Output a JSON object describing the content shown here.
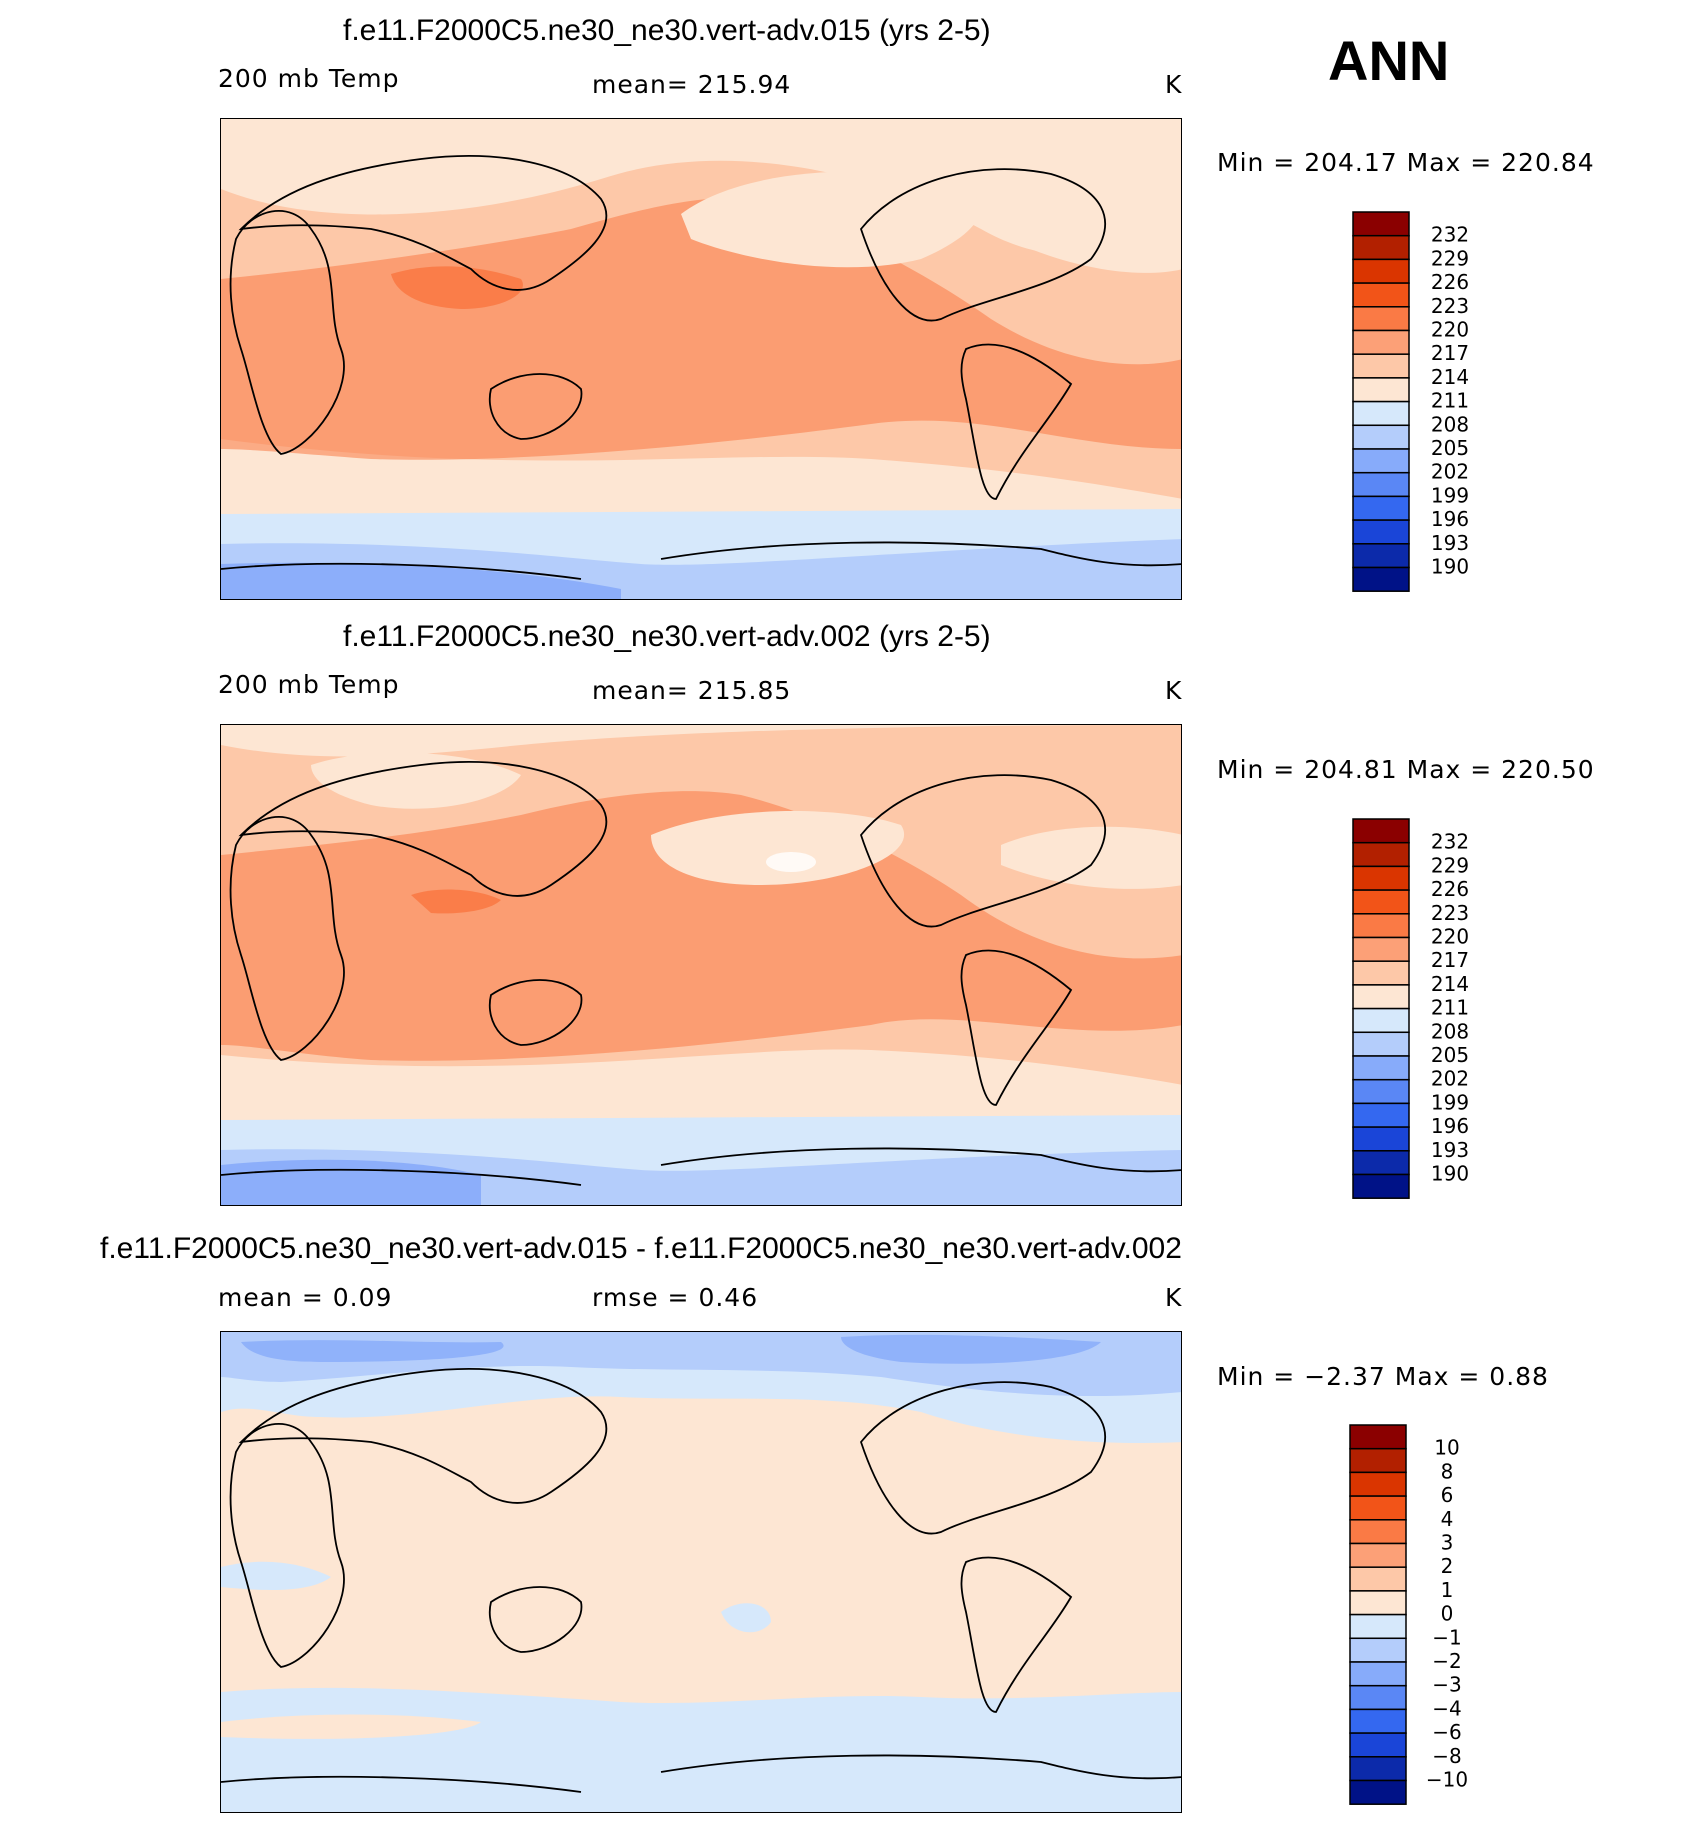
{
  "season": "ANN",
  "panels": [
    {
      "title": "f.e11.F2000C5.ne30_ne30.vert-adv.015 (yrs 2-5)",
      "left_label": "200 mb Temp",
      "mid_label": "mean=  215.94",
      "units": "K",
      "minmax": "Min  =  204.17  Max  =  220.84",
      "colorbar_labels": [
        "232",
        "229",
        "226",
        "223",
        "220",
        "217",
        "214",
        "211",
        "208",
        "205",
        "202",
        "199",
        "196",
        "193",
        "190"
      ]
    },
    {
      "title": "f.e11.F2000C5.ne30_ne30.vert-adv.002 (yrs 2-5)",
      "left_label": "200 mb Temp",
      "mid_label": "mean=  215.85",
      "units": "K",
      "minmax": "Min  =  204.81  Max  =  220.50",
      "colorbar_labels": [
        "232",
        "229",
        "226",
        "223",
        "220",
        "217",
        "214",
        "211",
        "208",
        "205",
        "202",
        "199",
        "196",
        "193",
        "190"
      ]
    },
    {
      "title": "f.e11.F2000C5.ne30_ne30.vert-adv.015 - f.e11.F2000C5.ne30_ne30.vert-adv.002",
      "left_label": "mean  =     0.09",
      "mid_label": "rmse  =     0.46",
      "units": "K",
      "minmax": "Min  =    −2.37  Max  =      0.88",
      "colorbar_labels": [
        "10",
        "8",
        "6",
        "4",
        "3",
        "2",
        "1",
        "0",
        "−1",
        "−2",
        "−3",
        "−4",
        "−6",
        "−8",
        "−10"
      ]
    }
  ],
  "colorbar_colors": [
    "#8b0000",
    "#b22000",
    "#da3500",
    "#f25418",
    "#fa7a45",
    "#fca077",
    "#fdc8a8",
    "#fde6d3",
    "#d6e8fb",
    "#b4cdfb",
    "#87abfa",
    "#5a87f5",
    "#3468f0",
    "#1a45d8",
    "#0c2aaa",
    "#001287"
  ],
  "chart_data": [
    {
      "type": "heatmap",
      "title": "f.e11.F2000C5.ne30_ne30.vert-adv.015 (yrs 2-5)",
      "variable": "200 mb Temp",
      "units": "K",
      "mean": 215.94,
      "min": 204.17,
      "max": 220.84,
      "contour_levels": [
        190,
        193,
        196,
        199,
        202,
        205,
        208,
        211,
        214,
        217,
        220,
        223,
        226,
        229,
        232
      ]
    },
    {
      "type": "heatmap",
      "title": "f.e11.F2000C5.ne30_ne30.vert-adv.002 (yrs 2-5)",
      "variable": "200 mb Temp",
      "units": "K",
      "mean": 215.85,
      "min": 204.81,
      "max": 220.5,
      "contour_levels": [
        190,
        193,
        196,
        199,
        202,
        205,
        208,
        211,
        214,
        217,
        220,
        223,
        226,
        229,
        232
      ]
    },
    {
      "type": "heatmap",
      "title": "f.e11.F2000C5.ne30_ne30.vert-adv.015 - f.e11.F2000C5.ne30_ne30.vert-adv.002",
      "units": "K",
      "mean": 0.09,
      "rmse": 0.46,
      "min": -2.37,
      "max": 0.88,
      "contour_levels": [
        -10,
        -8,
        -6,
        -4,
        -3,
        -2,
        -1,
        0,
        1,
        2,
        3,
        4,
        6,
        8,
        10
      ]
    }
  ]
}
